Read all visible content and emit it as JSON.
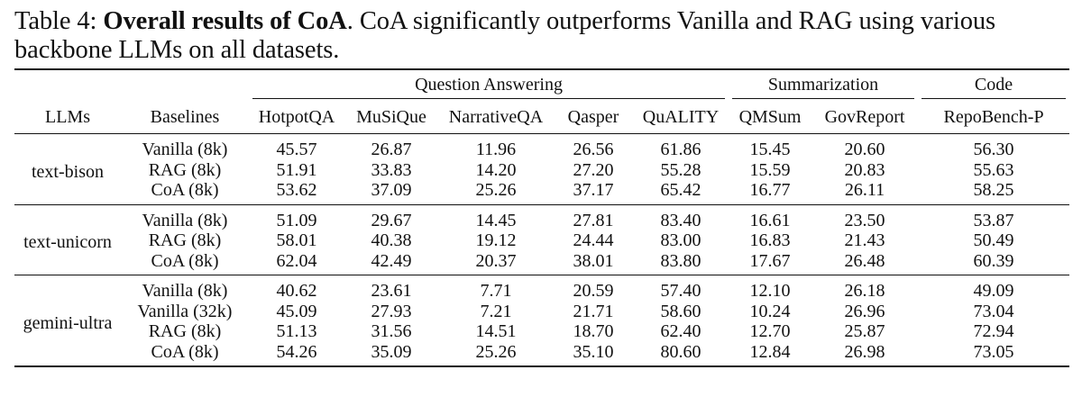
{
  "caption": {
    "label": "Table 4:",
    "bold_title": "Overall results of CoA",
    "text": ". CoA significantly outperforms Vanilla and RAG using various backbone LLMs on all datasets."
  },
  "table": {
    "groups": [
      {
        "label": "Question Answering",
        "span": 5
      },
      {
        "label": "Summarization",
        "span": 2
      },
      {
        "label": "Code",
        "span": 1
      }
    ],
    "headers": [
      "LLMs",
      "Baselines",
      "HotpotQA",
      "MuSiQue",
      "NarrativeQA",
      "Qasper",
      "QuALITY",
      "QMSum",
      "GovReport",
      "RepoBench-P"
    ],
    "blocks": [
      {
        "llm": "text-bison",
        "rows": [
          {
            "baseline": "Vanilla (8k)",
            "values": [
              "45.57",
              "26.87",
              "11.96",
              "26.56",
              "61.86",
              "15.45",
              "20.60",
              "56.30"
            ],
            "bold": false
          },
          {
            "baseline": "RAG (8k)",
            "values": [
              "51.91",
              "33.83",
              "14.20",
              "27.20",
              "55.28",
              "15.59",
              "20.83",
              "55.63"
            ],
            "bold": false
          },
          {
            "baseline": "CoA (8k)",
            "values": [
              "53.62",
              "37.09",
              "25.26",
              "37.17",
              "65.42",
              "16.77",
              "26.11",
              "58.25"
            ],
            "bold": true
          }
        ]
      },
      {
        "llm": "text-unicorn",
        "rows": [
          {
            "baseline": "Vanilla (8k)",
            "values": [
              "51.09",
              "29.67",
              "14.45",
              "27.81",
              "83.40",
              "16.61",
              "23.50",
              "53.87"
            ],
            "bold": false
          },
          {
            "baseline": "RAG (8k)",
            "values": [
              "58.01",
              "40.38",
              "19.12",
              "24.44",
              "83.00",
              "16.83",
              "21.43",
              "50.49"
            ],
            "bold": false
          },
          {
            "baseline": "CoA (8k)",
            "values": [
              "62.04",
              "42.49",
              "20.37",
              "38.01",
              "83.80",
              "17.67",
              "26.48",
              "60.39"
            ],
            "bold": true
          }
        ]
      },
      {
        "llm": "gemini-ultra",
        "rows": [
          {
            "baseline": "Vanilla (8k)",
            "values": [
              "40.62",
              "23.61",
              "7.71",
              "20.59",
              "57.40",
              "12.10",
              "26.18",
              "49.09"
            ],
            "bold": false
          },
          {
            "baseline": "Vanilla (32k)",
            "values": [
              "45.09",
              "27.93",
              "7.21",
              "21.71",
              "58.60",
              "10.24",
              "26.96",
              "73.04"
            ],
            "bold": false
          },
          {
            "baseline": "RAG (8k)",
            "values": [
              "51.13",
              "31.56",
              "14.51",
              "18.70",
              "62.40",
              "12.70",
              "25.87",
              "72.94"
            ],
            "bold": false
          },
          {
            "baseline": "CoA (8k)",
            "values": [
              "54.26",
              "35.09",
              "25.26",
              "35.10",
              "80.60",
              "12.84",
              "26.98",
              "73.05"
            ],
            "bold": true
          }
        ]
      }
    ]
  }
}
